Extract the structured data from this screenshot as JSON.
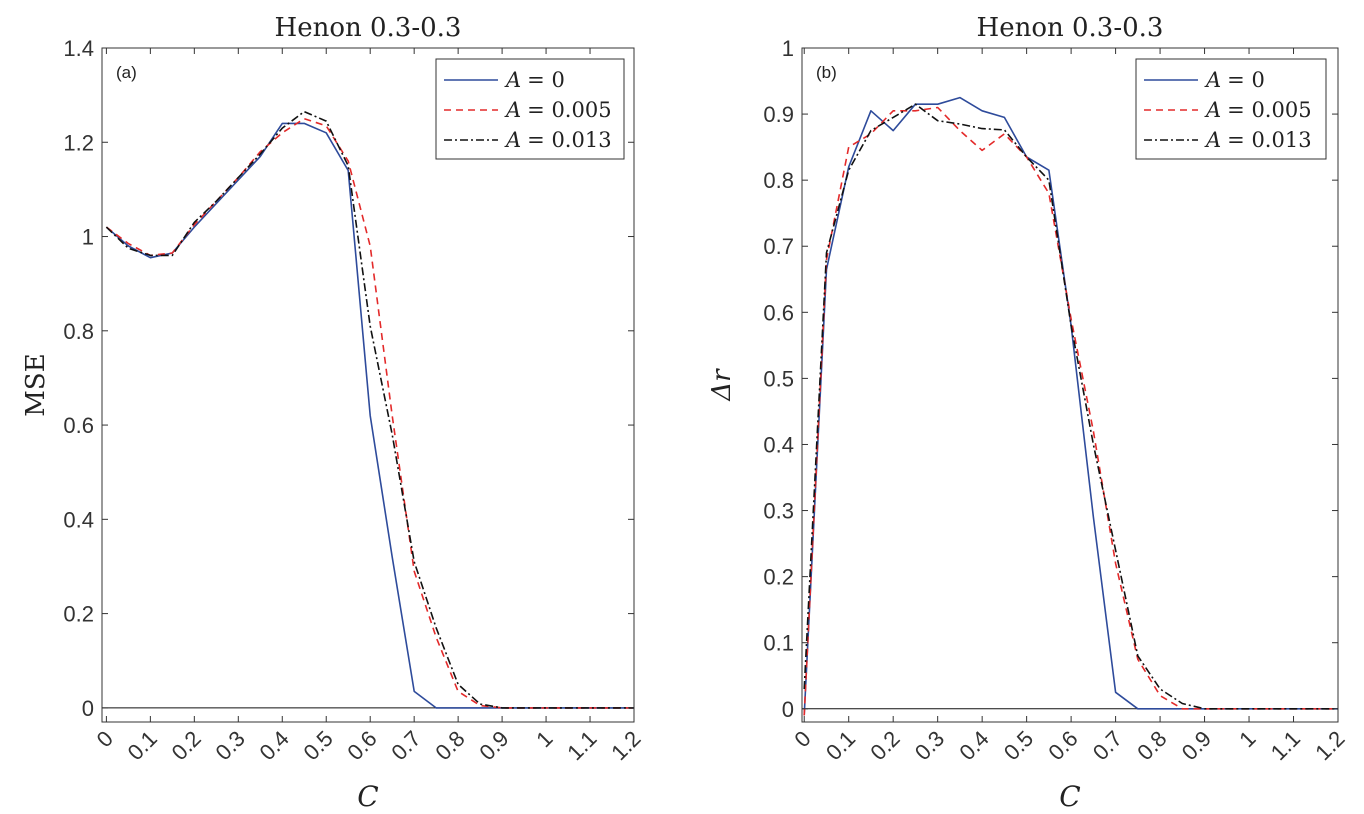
{
  "chart_data": [
    {
      "type": "line",
      "panel_label": "(a)",
      "title": "Henon 0.3-0.3",
      "xlabel": "C",
      "ylabel": "MSE",
      "xlim": [
        -0.01,
        1.2
      ],
      "ylim": [
        -0.03,
        1.4
      ],
      "xticks": [
        0,
        0.1,
        0.2,
        0.3,
        0.4,
        0.5,
        0.6,
        0.7,
        0.8,
        0.9,
        1,
        1.1,
        1.2
      ],
      "xtick_labels": [
        "0",
        "0.1",
        "0.2",
        "0.3",
        "0.4",
        "0.5",
        "0.6",
        "0.7",
        "0.8",
        "0.9",
        "1",
        "1.1",
        "1.2"
      ],
      "yticks": [
        0,
        0.2,
        0.4,
        0.6,
        0.8,
        1,
        1.2,
        1.4
      ],
      "ytick_labels": [
        "0",
        "0.2",
        "0.4",
        "0.6",
        "0.8",
        "1",
        "1.2",
        "1.4"
      ],
      "zero_line": true,
      "legend_position": "top-right",
      "x": [
        0,
        0.05,
        0.1,
        0.15,
        0.2,
        0.25,
        0.3,
        0.35,
        0.4,
        0.45,
        0.5,
        0.55,
        0.6,
        0.65,
        0.7,
        0.75,
        0.8,
        0.85,
        0.9,
        0.95,
        1.0,
        1.05,
        1.1,
        1.15,
        1.2
      ],
      "series": [
        {
          "name": "A = 0",
          "legend_var": "A",
          "legend_val": "= 0",
          "color": "#2e4b9b",
          "dash": "",
          "values": [
            1.02,
            0.98,
            0.955,
            0.965,
            1.02,
            1.07,
            1.12,
            1.17,
            1.24,
            1.24,
            1.22,
            1.14,
            0.62,
            0.32,
            0.035,
            0.0,
            0.0,
            0.0,
            0.0,
            0.0,
            0.0,
            0.0,
            0.0,
            0.0,
            0.0
          ]
        },
        {
          "name": "A = 0.005",
          "legend_var": "A",
          "legend_val": "= 0.005",
          "color": "#e32a2a",
          "dash": "7,5",
          "values": [
            1.02,
            0.985,
            0.96,
            0.965,
            1.025,
            1.075,
            1.125,
            1.18,
            1.22,
            1.25,
            1.235,
            1.16,
            0.98,
            0.62,
            0.29,
            0.15,
            0.035,
            0.005,
            0.0,
            0.0,
            0.0,
            0.0,
            0.0,
            0.0,
            0.0
          ]
        },
        {
          "name": "A = 0.013",
          "legend_var": "A",
          "legend_val": "= 0.013",
          "color": "#111111",
          "dash": "8,3,2,3",
          "values": [
            1.02,
            0.975,
            0.96,
            0.96,
            1.03,
            1.075,
            1.125,
            1.175,
            1.23,
            1.265,
            1.245,
            1.15,
            0.81,
            0.58,
            0.31,
            0.17,
            0.05,
            0.008,
            0.0,
            0.0,
            0.0,
            0.0,
            0.0,
            0.0,
            0.0
          ]
        }
      ]
    },
    {
      "type": "line",
      "panel_label": "(b)",
      "title": "Henon 0.3-0.3",
      "xlabel": "C",
      "ylabel_var": "Δr",
      "xlim": [
        -0.005,
        1.2
      ],
      "ylim": [
        -0.02,
        1.0
      ],
      "xticks": [
        0,
        0.1,
        0.2,
        0.3,
        0.4,
        0.5,
        0.6,
        0.7,
        0.8,
        0.9,
        1,
        1.1,
        1.2
      ],
      "xtick_labels": [
        "0",
        "0.1",
        "0.2",
        "0.3",
        "0.4",
        "0.5",
        "0.6",
        "0.7",
        "0.8",
        "0.9",
        "1",
        "1.1",
        "1.2"
      ],
      "yticks": [
        0,
        0.1,
        0.2,
        0.3,
        0.4,
        0.5,
        0.6,
        0.7,
        0.8,
        0.9,
        1
      ],
      "ytick_labels": [
        "0",
        "0.1",
        "0.2",
        "0.3",
        "0.4",
        "0.5",
        "0.6",
        "0.7",
        "0.8",
        "0.9",
        "1"
      ],
      "zero_line": true,
      "legend_position": "top-right",
      "x": [
        0,
        0.05,
        0.1,
        0.15,
        0.2,
        0.25,
        0.3,
        0.35,
        0.4,
        0.45,
        0.5,
        0.55,
        0.6,
        0.65,
        0.7,
        0.75,
        0.8,
        0.85,
        0.9,
        0.95,
        1.0,
        1.05,
        1.1,
        1.15,
        1.2
      ],
      "series": [
        {
          "name": "A = 0",
          "legend_var": "A",
          "legend_val": "= 0",
          "color": "#2e4b9b",
          "dash": "",
          "values": [
            -0.01,
            0.665,
            0.82,
            0.905,
            0.875,
            0.915,
            0.915,
            0.925,
            0.905,
            0.895,
            0.835,
            0.815,
            0.58,
            0.29,
            0.025,
            0.0,
            0.0,
            0.0,
            0.0,
            0.0,
            0.0,
            0.0,
            0.0,
            0.0,
            0.0
          ]
        },
        {
          "name": "A = 0.005",
          "legend_var": "A",
          "legend_val": "= 0.005",
          "color": "#e32a2a",
          "dash": "7,5",
          "values": [
            -0.01,
            0.68,
            0.85,
            0.87,
            0.905,
            0.905,
            0.91,
            0.875,
            0.845,
            0.87,
            0.835,
            0.78,
            0.59,
            0.42,
            0.22,
            0.075,
            0.02,
            0.0,
            0.0,
            0.0,
            0.0,
            0.0,
            0.0,
            0.0,
            0.0
          ]
        },
        {
          "name": "A = 0.013",
          "legend_var": "A",
          "legend_val": "= 0.013",
          "color": "#111111",
          "dash": "8,3,2,3",
          "values": [
            0.03,
            0.69,
            0.815,
            0.875,
            0.895,
            0.915,
            0.89,
            0.885,
            0.878,
            0.876,
            0.835,
            0.8,
            0.58,
            0.4,
            0.24,
            0.08,
            0.03,
            0.008,
            0.0,
            0.0,
            0.0,
            0.0,
            0.0,
            0.0,
            0.0
          ]
        }
      ]
    }
  ]
}
